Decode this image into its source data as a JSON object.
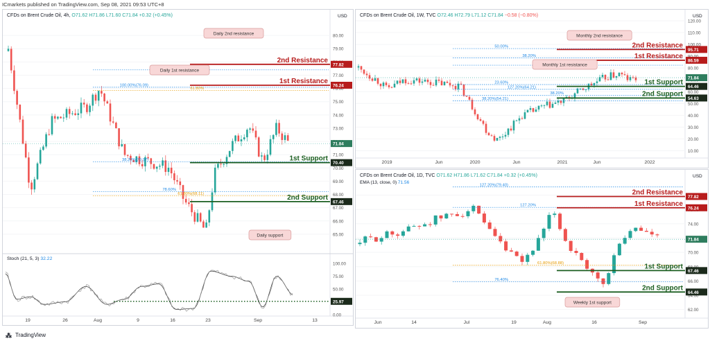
{
  "top_bar": {
    "text": "ICmarkets published on TradingView.com, Sep 08, 2021 09:53 UTC+8"
  },
  "footer": {
    "brand": "TradingView",
    "logo_icon": "tradingview-logo-icon"
  },
  "colors": {
    "red_line": "#b71c1c",
    "green_line": "#1b5e20",
    "zone_red": "#f8cfcf",
    "zone_green": "#cde8c7",
    "fib_blue": "#1e88e5",
    "fib_orange": "#e69a00",
    "callout_bg": "#f8d7d7",
    "callout_border": "#d99a9a",
    "bull": "#26a69a",
    "bear": "#ef5350",
    "price_tag": "#2e7d5e"
  },
  "panels": [
    {
      "id": "4h",
      "header": {
        "symbol": "CFDs on Brent Crude Oil, 4h,",
        "o": "O71.62",
        "h": "H71.86",
        "l": "L71.60",
        "c": "C71.84",
        "chg": "+0.32 (+0.45%)"
      },
      "currency": "USD",
      "y_axis": {
        "min": 64.0,
        "max": 81.0,
        "ticks": [
          "80.00",
          "79.00",
          "78.00",
          "77.00",
          "76.00",
          "75.00",
          "74.00",
          "73.00",
          "72.00",
          "71.00",
          "70.00",
          "69.00",
          "68.00",
          "67.00",
          "66.00",
          "65.00"
        ]
      },
      "x_axis": {
        "ticks": [
          "19",
          "26",
          "Aug",
          "9",
          "16",
          "23",
          "Sep",
          "13"
        ]
      },
      "levels": [
        {
          "label": "2nd Resistance",
          "price": 77.82,
          "tag": "77.82",
          "color": "red"
        },
        {
          "label": "1st Resistance",
          "price": 76.24,
          "tag": "76.24",
          "color": "red"
        },
        {
          "label": "1st Support",
          "price": 70.4,
          "tag": "70.40",
          "color": "green"
        },
        {
          "label": "2nd Support",
          "price": 67.46,
          "tag": "67.46",
          "color": "green"
        }
      ],
      "fibs": [
        {
          "label": "100.00%(76.09)",
          "price": 76.09
        },
        {
          "label": "78.60%",
          "price": 77.4
        },
        {
          "label": "61.80%",
          "price": 75.85
        },
        {
          "label": "38.20%(70.97)",
          "price": 70.47
        },
        {
          "label": "78.60%",
          "price": 68.2
        },
        {
          "label": "61.80%(68.11)",
          "price": 67.9
        }
      ],
      "callouts": [
        "Daily 2nd resistance",
        "Daily 1st resistance",
        "Daily support"
      ],
      "last_price": "71.84",
      "oscillator": {
        "header": "Stoch (21, 5, 3)",
        "value": "32.22",
        "ticks": [
          "100.00",
          "75.00",
          "50.00",
          "25.00",
          "0.00"
        ],
        "level_tag": "25.97"
      }
    },
    {
      "id": "1w",
      "header": {
        "symbol": "CFDs on Brent Crude Oil, 1W, TVC",
        "o": "O72.46",
        "h": "H72.79",
        "l": "L71.12",
        "c": "C71.84",
        "chg": "−0.58 (−0.80%)"
      },
      "currency": "USD",
      "y_axis": {
        "min": 5.0,
        "max": 120.0,
        "ticks": [
          "120.00",
          "110.00",
          "100.00",
          "90.00",
          "80.00",
          "70.00",
          "60.00",
          "50.00",
          "40.00",
          "30.00",
          "20.00",
          "10.00"
        ]
      },
      "x_axis": {
        "ticks": [
          "2019",
          "Jun",
          "2020",
          "Jun",
          "2021",
          "Jun",
          "2022"
        ]
      },
      "levels": [
        {
          "label": "2nd Resistance",
          "price": 95.71,
          "tag": "95.71",
          "color": "red"
        },
        {
          "label": "1st Resistance",
          "price": 86.59,
          "tag": "86.59",
          "color": "red"
        },
        {
          "label": "1st Support",
          "price": 64.46,
          "tag": "64.46",
          "color": "green"
        },
        {
          "label": "2nd Support",
          "price": 54.63,
          "tag": "54.63",
          "color": "green"
        }
      ],
      "fibs": [
        {
          "label": "50.00%",
          "price": 96.5
        },
        {
          "label": "38.20%",
          "price": 88.6
        },
        {
          "label": "127.20%(86.31)",
          "price": 82.4
        },
        {
          "label": "23.60%",
          "price": 66.0
        },
        {
          "label": "127.20%(64.21)",
          "price": 62.0
        },
        {
          "label": "38.20%",
          "price": 56.8
        },
        {
          "label": "38.20%(54.21)",
          "price": 52.3
        }
      ],
      "callouts": [
        "Monthly 2nd resistance",
        "Monthly 1st resistance"
      ],
      "last_price": "71.84"
    },
    {
      "id": "1d",
      "header": {
        "symbol": "CFDs on Brent Crude Oil, 1D, TVC",
        "o": "O71.62",
        "h": "H71.86",
        "l": "L71.62",
        "c": "C71.84",
        "chg": "+0.32 (+0.45%)"
      },
      "sub": "EMA (13, close, 0)",
      "sub_val": "71.56",
      "currency": "USD",
      "y_axis": {
        "min": 61.0,
        "max": 80.0,
        "ticks": [
          "78.00",
          "76.00",
          "74.00",
          "72.00",
          "70.00",
          "68.00",
          "66.00",
          "64.00",
          "62.00"
        ]
      },
      "x_axis": {
        "ticks": [
          "Jun",
          "14",
          "Jul",
          "19",
          "Aug",
          "16",
          "Sep"
        ]
      },
      "levels": [
        {
          "label": "2nd Resistance",
          "price": 77.82,
          "tag": "77.82",
          "color": "red"
        },
        {
          "label": "1st Resistance",
          "price": 76.24,
          "tag": "76.24",
          "color": "red"
        },
        {
          "label": "1st Support",
          "price": 67.46,
          "tag": "67.46",
          "color": "green"
        },
        {
          "label": "2nd Support",
          "price": 64.46,
          "tag": "64.46",
          "color": "green"
        }
      ],
      "fibs": [
        {
          "label": "127.20%(79.40)",
          "price": 79.15
        },
        {
          "label": "127.20%",
          "price": 76.3
        },
        {
          "label": "61.80%(68.88)",
          "price": 68.2
        },
        {
          "label": "76.40%",
          "price": 65.9
        }
      ],
      "callouts": [
        "Weekly 1st support"
      ],
      "last_price": "71.84"
    }
  ]
}
